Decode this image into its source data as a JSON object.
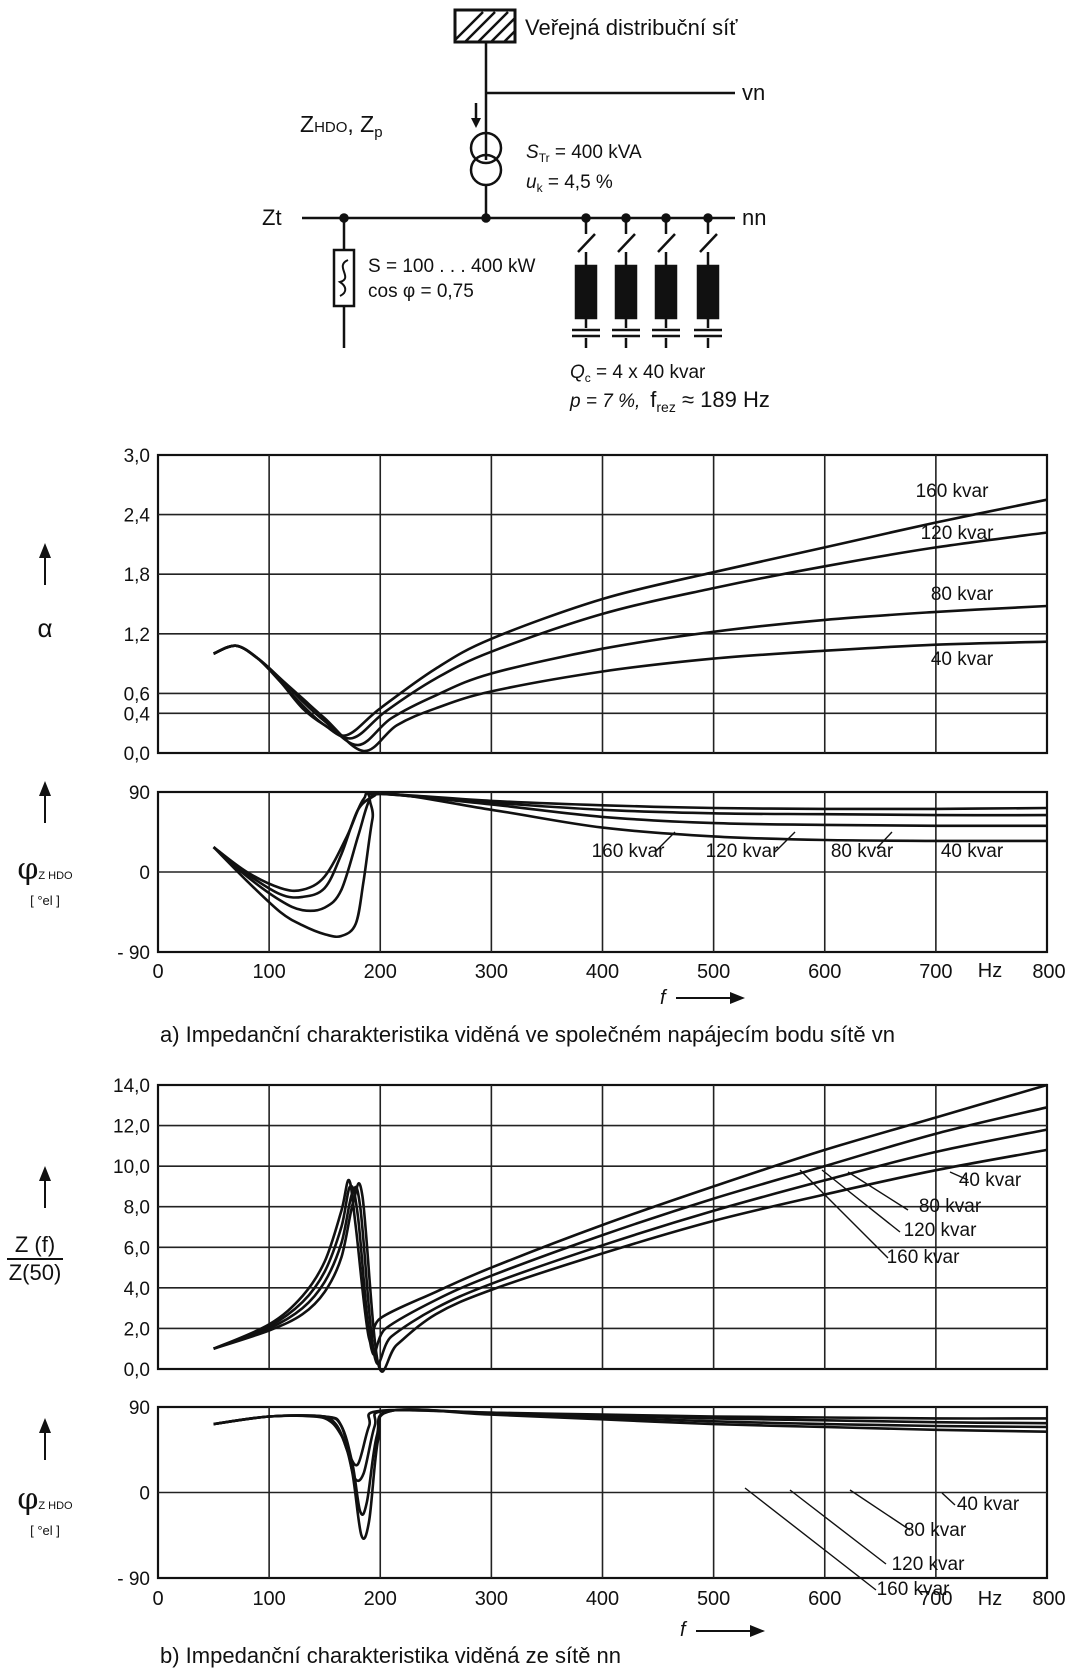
{
  "schematic": {
    "network_label": "Veřejná distribuční síť",
    "vn_label": "vn",
    "nn_label": "nn",
    "zhdo_label_main": "Z",
    "zhdo_label_sub": "HDO",
    "zp_label_main": ", Z",
    "zp_label_sub": "p",
    "zt_label": "Zt",
    "transformer_s": "S",
    "transformer_s_sub": "Tr",
    "transformer_s_value": " = 400 kVA",
    "transformer_u": "u",
    "transformer_u_sub": "k",
    "transformer_u_value": " = 4,5 %",
    "load_s": "S = 100 . . . 400 kW",
    "load_cos": "cos φ = 0,75",
    "cap_q": "Q",
    "cap_q_sub": "c",
    "cap_q_value": " = 4 x 40 kvar",
    "cap_p": "p = 7 %,",
    "cap_f": "f",
    "cap_f_sub": "rez",
    "cap_f_value": " ≈ 189 Hz"
  },
  "labels": {
    "alpha": "α",
    "phi": "φ",
    "phi_sub": "Z HDO",
    "unit_el": "[ °el ]",
    "zf_num": "Z (f)",
    "zf_den": "Z(50)",
    "f_symbol": "f",
    "hz": "Hz",
    "caption_a": "a) Impedanční charakteristika  viděná ve společném napájecím bodu sítě vn",
    "caption_b": "b) Impedanční charakteristika  viděná ze sítě nn"
  },
  "chart_data": [
    {
      "id": "a_alpha",
      "type": "line",
      "ylabel": "α",
      "xlim": [
        0,
        800
      ],
      "ylim": [
        0,
        3.0
      ],
      "x_ticks": [
        0,
        100,
        200,
        300,
        400,
        500,
        600,
        700,
        800
      ],
      "y_ticks": [
        0,
        0.4,
        0.6,
        1.2,
        1.8,
        2.4,
        3.0
      ],
      "y_tick_labels": [
        "0,0",
        "0,4",
        "0,6",
        "1,2",
        "1,8",
        "2,4",
        "3,0"
      ],
      "grid": true,
      "series": [
        {
          "name": "160 kvar",
          "x": [
            50,
            70,
            90,
            110,
            130,
            150,
            170,
            200,
            250,
            300,
            400,
            500,
            600,
            700,
            800
          ],
          "y": [
            1.0,
            1.08,
            0.95,
            0.72,
            0.45,
            0.28,
            0.18,
            0.45,
            0.85,
            1.15,
            1.55,
            1.82,
            2.07,
            2.32,
            2.55
          ]
        },
        {
          "name": "120 kvar",
          "x": [
            50,
            70,
            90,
            110,
            130,
            150,
            175,
            205,
            250,
            300,
            400,
            500,
            600,
            700,
            800
          ],
          "y": [
            1.0,
            1.08,
            0.95,
            0.72,
            0.48,
            0.28,
            0.15,
            0.42,
            0.75,
            1.02,
            1.4,
            1.66,
            1.88,
            2.07,
            2.22
          ]
        },
        {
          "name": "80 kvar",
          "x": [
            50,
            70,
            90,
            110,
            130,
            150,
            180,
            210,
            250,
            300,
            400,
            500,
            600,
            700,
            800
          ],
          "y": [
            1.0,
            1.08,
            0.95,
            0.75,
            0.52,
            0.32,
            0.08,
            0.35,
            0.58,
            0.8,
            1.05,
            1.22,
            1.34,
            1.42,
            1.48
          ]
        },
        {
          "name": "40 kvar",
          "x": [
            50,
            70,
            90,
            110,
            130,
            150,
            185,
            215,
            250,
            300,
            400,
            500,
            600,
            700,
            800
          ],
          "y": [
            1.0,
            1.08,
            0.95,
            0.75,
            0.55,
            0.35,
            0.02,
            0.28,
            0.45,
            0.62,
            0.82,
            0.95,
            1.03,
            1.09,
            1.12
          ]
        }
      ]
    },
    {
      "id": "a_phi",
      "type": "line",
      "xlim": [
        0,
        800
      ],
      "ylim": [
        -90,
        90
      ],
      "x_ticks": [
        0,
        100,
        200,
        300,
        400,
        500,
        600,
        700,
        800
      ],
      "x_tick_labels": [
        "0",
        "100",
        "200",
        "300",
        "400",
        "500",
        "600",
        "700",
        "800"
      ],
      "y_ticks": [
        -90,
        0,
        90
      ],
      "y_tick_labels": [
        "- 90",
        "0",
        "90"
      ],
      "grid": true,
      "series": [
        {
          "name": "160 kvar",
          "x": [
            50,
            80,
            110,
            130,
            150,
            170,
            185,
            200,
            300,
            400,
            500,
            600,
            700,
            800
          ],
          "y": [
            28,
            0,
            -18,
            -20,
            -5,
            40,
            82,
            88,
            80,
            75,
            72,
            71,
            71,
            72
          ]
        },
        {
          "name": "120 kvar",
          "x": [
            50,
            80,
            110,
            130,
            150,
            165,
            180,
            195,
            200,
            300,
            400,
            500,
            600,
            700,
            800
          ],
          "y": [
            28,
            -2,
            -25,
            -28,
            -18,
            20,
            70,
            86,
            88,
            78,
            70,
            66,
            65,
            64,
            64
          ]
        },
        {
          "name": "80 kvar",
          "x": [
            50,
            80,
            110,
            130,
            150,
            165,
            180,
            190,
            200,
            300,
            400,
            500,
            600,
            700,
            800
          ],
          "y": [
            28,
            -5,
            -32,
            -43,
            -40,
            -20,
            40,
            80,
            88,
            76,
            62,
            55,
            53,
            52,
            52
          ]
        },
        {
          "name": "40 kvar",
          "x": [
            50,
            80,
            110,
            130,
            150,
            165,
            178,
            185,
            193,
            200,
            300,
            400,
            500,
            600,
            700,
            800
          ],
          "y": [
            28,
            -10,
            -45,
            -60,
            -70,
            -72,
            -58,
            -10,
            60,
            88,
            70,
            50,
            40,
            36,
            35,
            35
          ]
        }
      ]
    },
    {
      "id": "b_z",
      "type": "line",
      "xlim": [
        0,
        800
      ],
      "ylim": [
        0,
        14.0
      ],
      "x_ticks": [
        0,
        100,
        200,
        300,
        400,
        500,
        600,
        700,
        800
      ],
      "y_ticks": [
        0,
        2,
        4,
        6,
        8,
        10,
        12,
        14
      ],
      "y_tick_labels": [
        "0,0",
        "2,0",
        "4,0",
        "6,0",
        "8,0",
        "10,0",
        "12,0",
        "14,0"
      ],
      "grid": true,
      "series": [
        {
          "name": "160 kvar",
          "x": [
            50,
            100,
            130,
            150,
            165,
            172,
            178,
            190,
            200,
            250,
            300,
            400,
            500,
            600,
            700,
            800
          ],
          "y": [
            1.0,
            2.2,
            3.6,
            5.3,
            7.8,
            9.3,
            7.0,
            1.5,
            2.5,
            3.8,
            5.0,
            7.1,
            9.0,
            10.8,
            12.4,
            14.0
          ]
        },
        {
          "name": "120 kvar",
          "x": [
            50,
            100,
            130,
            150,
            165,
            173,
            180,
            192,
            205,
            250,
            300,
            400,
            500,
            600,
            700,
            800
          ],
          "y": [
            1.0,
            2.1,
            3.3,
            4.8,
            7.0,
            9.0,
            7.5,
            1.0,
            2.0,
            3.4,
            4.6,
            6.6,
            8.4,
            10.0,
            11.6,
            12.9
          ]
        },
        {
          "name": "80 kvar",
          "x": [
            50,
            100,
            130,
            150,
            165,
            175,
            182,
            195,
            210,
            250,
            300,
            400,
            500,
            600,
            700,
            800
          ],
          "y": [
            1.0,
            2.0,
            3.0,
            4.3,
            6.2,
            8.7,
            8.0,
            0.6,
            1.6,
            3.0,
            4.2,
            6.1,
            7.8,
            9.3,
            10.7,
            11.8
          ]
        },
        {
          "name": "40 kvar",
          "x": [
            50,
            100,
            130,
            150,
            165,
            176,
            184,
            198,
            215,
            250,
            300,
            400,
            500,
            600,
            700,
            800
          ],
          "y": [
            1.0,
            1.9,
            2.7,
            3.8,
            5.5,
            8.3,
            8.5,
            0.3,
            1.2,
            2.7,
            3.9,
            5.7,
            7.3,
            8.6,
            9.8,
            10.8
          ]
        }
      ]
    },
    {
      "id": "b_phi",
      "type": "line",
      "xlim": [
        0,
        800
      ],
      "ylim": [
        -90,
        90
      ],
      "x_ticks": [
        0,
        100,
        200,
        300,
        400,
        500,
        600,
        700,
        800
      ],
      "x_tick_labels": [
        "0",
        "100",
        "200",
        "300",
        "400",
        "500",
        "600",
        "700",
        "800"
      ],
      "y_ticks": [
        -90,
        0,
        90
      ],
      "y_tick_labels": [
        "- 90",
        "0",
        "90"
      ],
      "grid": true,
      "series": [
        {
          "name": "160 kvar",
          "x": [
            50,
            100,
            140,
            155,
            165,
            172,
            180,
            190,
            200,
            300,
            400,
            500,
            600,
            700,
            800
          ],
          "y": [
            72,
            80,
            80,
            75,
            60,
            40,
            30,
            70,
            86,
            84,
            82,
            80,
            79,
            78,
            78
          ]
        },
        {
          "name": "120 kvar",
          "x": [
            50,
            100,
            145,
            160,
            170,
            177,
            185,
            195,
            205,
            300,
            400,
            500,
            600,
            700,
            800
          ],
          "y": [
            72,
            80,
            80,
            72,
            45,
            15,
            20,
            70,
            86,
            84,
            81,
            78,
            76,
            74,
            73
          ]
        },
        {
          "name": "80 kvar",
          "x": [
            50,
            100,
            150,
            165,
            175,
            182,
            188,
            197,
            210,
            300,
            400,
            500,
            600,
            700,
            800
          ],
          "y": [
            72,
            80,
            80,
            70,
            30,
            -20,
            -10,
            60,
            86,
            83,
            79,
            75,
            72,
            70,
            69
          ]
        },
        {
          "name": "40 kvar",
          "x": [
            50,
            100,
            150,
            165,
            175,
            183,
            190,
            198,
            210,
            300,
            400,
            500,
            600,
            700,
            800
          ],
          "y": [
            72,
            80,
            80,
            70,
            20,
            -45,
            -30,
            55,
            86,
            82,
            77,
            72,
            69,
            66,
            64
          ]
        }
      ]
    }
  ]
}
